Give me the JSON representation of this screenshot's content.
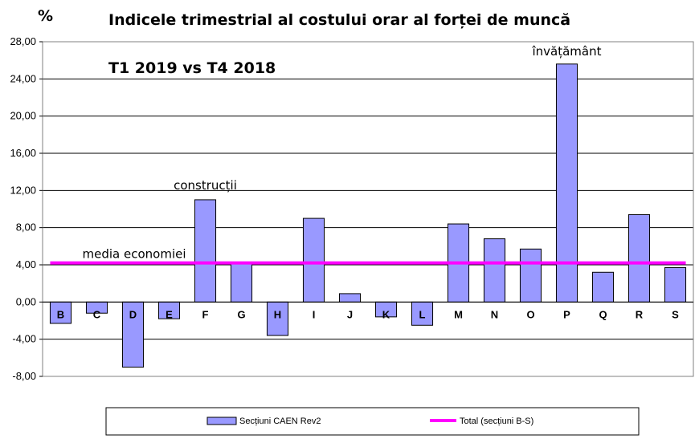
{
  "chart_data": {
    "type": "bar",
    "title": "Indicele trimestrial al costului orar al forței de muncă",
    "unit_label": "%",
    "subtitle": "T1 2019 vs T4 2018",
    "categories": [
      "B",
      "C",
      "D",
      "E",
      "F",
      "G",
      "H",
      "I",
      "J",
      "K",
      "L",
      "M",
      "N",
      "O",
      "P",
      "Q",
      "R",
      "S"
    ],
    "series": [
      {
        "name": "Secțiuni CAEN Rev2",
        "type": "bar",
        "color": "#9999ff",
        "values": [
          -2.3,
          -1.2,
          -7.0,
          -1.8,
          11.0,
          4.2,
          -3.6,
          9.0,
          0.9,
          -1.6,
          -2.5,
          8.4,
          6.8,
          5.7,
          25.6,
          3.2,
          9.4,
          3.7
        ]
      },
      {
        "name": "Total (secțiuni B-S)",
        "type": "line",
        "color": "#ff00ff",
        "value": 4.2
      }
    ],
    "ylim": [
      -8,
      28
    ],
    "yticks": [
      "-8,00",
      "-4,00",
      "0,00",
      "4,00",
      "8,00",
      "12,00",
      "16,00",
      "20,00",
      "24,00",
      "28,00"
    ],
    "ytick_values": [
      -8,
      -4,
      0,
      4,
      8,
      12,
      16,
      20,
      24,
      28
    ],
    "grid": true,
    "legend_position": "bottom",
    "annotations": [
      {
        "text": "construcții",
        "category": "F"
      },
      {
        "text": "învățământ",
        "category": "P"
      },
      {
        "text": "media economiei",
        "category": "B"
      }
    ]
  }
}
